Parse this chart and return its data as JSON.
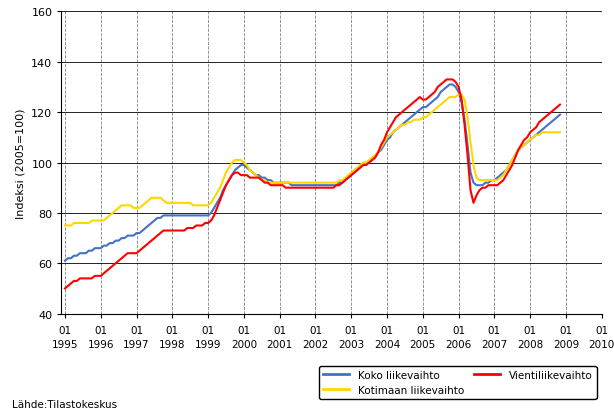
{
  "ylabel": "Indeksi (2005=100)",
  "source": "Lähde:Tilastokeskus",
  "ylim": [
    40,
    160
  ],
  "yticks": [
    40,
    60,
    80,
    100,
    120,
    140,
    160
  ],
  "years": [
    1995,
    1996,
    1997,
    1998,
    1999,
    2000,
    2001,
    2002,
    2003,
    2004,
    2005,
    2006,
    2007,
    2008,
    2009,
    2010
  ],
  "line_colors": {
    "koko": "#4472C4",
    "kotimaan": "#FFD700",
    "vienti": "#FF0000"
  },
  "koko": [
    61,
    62,
    62,
    63,
    63,
    64,
    64,
    64,
    65,
    65,
    66,
    66,
    66,
    67,
    67,
    68,
    68,
    69,
    69,
    70,
    70,
    71,
    71,
    71,
    72,
    72,
    73,
    74,
    75,
    76,
    77,
    78,
    78,
    79,
    79,
    79,
    79,
    79,
    79,
    79,
    79,
    79,
    79,
    79,
    79,
    79,
    79,
    79,
    79,
    80,
    82,
    84,
    86,
    89,
    91,
    93,
    95,
    97,
    98,
    99,
    99,
    98,
    97,
    96,
    95,
    95,
    94,
    94,
    93,
    93,
    92,
    92,
    92,
    92,
    92,
    92,
    91,
    91,
    91,
    91,
    91,
    91,
    91,
    91,
    91,
    91,
    91,
    91,
    91,
    91,
    91,
    91,
    92,
    92,
    93,
    94,
    95,
    96,
    97,
    98,
    99,
    100,
    100,
    101,
    102,
    104,
    105,
    107,
    109,
    110,
    112,
    113,
    114,
    115,
    116,
    117,
    118,
    119,
    120,
    121,
    122,
    122,
    123,
    124,
    125,
    126,
    128,
    129,
    130,
    131,
    131,
    130,
    128,
    124,
    117,
    107,
    96,
    92,
    91,
    91,
    91,
    92,
    92,
    93,
    93,
    94,
    95,
    96,
    97,
    99,
    101,
    103,
    105,
    106,
    107,
    108,
    109,
    110,
    111,
    112,
    113,
    114,
    115,
    116,
    117,
    118,
    119
  ],
  "kotimaan": [
    75,
    75,
    75,
    76,
    76,
    76,
    76,
    76,
    76,
    77,
    77,
    77,
    77,
    77,
    78,
    79,
    80,
    81,
    82,
    83,
    83,
    83,
    83,
    82,
    82,
    82,
    83,
    84,
    85,
    86,
    86,
    86,
    86,
    85,
    84,
    84,
    84,
    84,
    84,
    84,
    84,
    84,
    84,
    83,
    83,
    83,
    83,
    83,
    83,
    84,
    86,
    88,
    90,
    93,
    96,
    98,
    100,
    101,
    101,
    101,
    100,
    99,
    97,
    96,
    95,
    94,
    93,
    93,
    92,
    92,
    92,
    92,
    92,
    92,
    92,
    92,
    92,
    92,
    92,
    92,
    92,
    92,
    92,
    92,
    92,
    92,
    92,
    92,
    92,
    92,
    92,
    92,
    93,
    93,
    94,
    95,
    96,
    97,
    98,
    99,
    100,
    100,
    101,
    102,
    103,
    104,
    106,
    108,
    110,
    111,
    112,
    113,
    114,
    115,
    115,
    116,
    116,
    117,
    117,
    117,
    118,
    118,
    119,
    120,
    121,
    122,
    123,
    124,
    125,
    126,
    126,
    126,
    127,
    127,
    125,
    118,
    108,
    99,
    94,
    93,
    93,
    93,
    93,
    93,
    93,
    93,
    94,
    95,
    97,
    99,
    101,
    103,
    105,
    106,
    107,
    108,
    109,
    110,
    111,
    111,
    112,
    112,
    112,
    112,
    112,
    112,
    112
  ],
  "vienti": [
    50,
    51,
    52,
    53,
    53,
    54,
    54,
    54,
    54,
    54,
    55,
    55,
    55,
    56,
    57,
    58,
    59,
    60,
    61,
    62,
    63,
    64,
    64,
    64,
    64,
    65,
    66,
    67,
    68,
    69,
    70,
    71,
    72,
    73,
    73,
    73,
    73,
    73,
    73,
    73,
    73,
    74,
    74,
    74,
    75,
    75,
    75,
    76,
    76,
    77,
    79,
    82,
    85,
    88,
    91,
    93,
    95,
    96,
    96,
    95,
    95,
    95,
    94,
    94,
    94,
    94,
    93,
    92,
    92,
    91,
    91,
    91,
    91,
    91,
    90,
    90,
    90,
    90,
    90,
    90,
    90,
    90,
    90,
    90,
    90,
    90,
    90,
    90,
    90,
    90,
    90,
    91,
    91,
    92,
    93,
    94,
    95,
    96,
    97,
    98,
    99,
    99,
    100,
    101,
    102,
    104,
    107,
    109,
    112,
    114,
    116,
    118,
    119,
    120,
    121,
    122,
    123,
    124,
    125,
    126,
    125,
    125,
    126,
    127,
    128,
    130,
    131,
    132,
    133,
    133,
    133,
    132,
    130,
    125,
    115,
    103,
    89,
    84,
    87,
    89,
    90,
    90,
    91,
    91,
    91,
    91,
    92,
    93,
    95,
    97,
    99,
    102,
    105,
    107,
    109,
    110,
    112,
    113,
    114,
    116,
    117,
    118,
    119,
    120,
    121,
    122,
    123
  ]
}
